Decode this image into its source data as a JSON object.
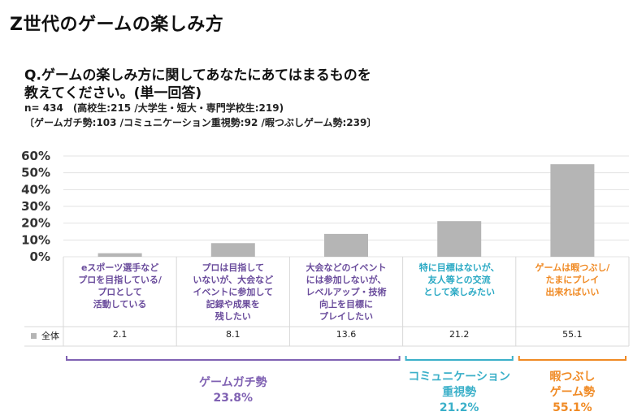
{
  "header": {
    "title": "Z世代のゲームの楽しみ方",
    "question_line1": "Q.ゲームの楽しみ方に関してあなたにあてはまるものを",
    "question_line2": "教えてください。(単一回答)",
    "sample_line1": "n= 434　(高校生:215 /大学生・短大・専門学校生:219)",
    "sample_line2": "〔ゲームガチ勢:103 /コミュニケーション重視勢:92 /暇つぶしゲーム勢:239〕"
  },
  "chart_data": {
    "type": "bar",
    "ylim": [
      0,
      60
    ],
    "yticks": [
      "0%",
      "10%",
      "20%",
      "30%",
      "40%",
      "50%",
      "60%"
    ],
    "categories": [
      "eスポーツ選手など\nプロを目指している/\nプロとして\n活動している",
      "プロは目指して\nいないが、大会など\nイベントに参加して\n記録や成果を\n残したい",
      "大会などのイベント\nには参加しないが、\nレベルアップ・技術\n向上を目標に\nプレイしたい",
      "特に目標はないが、\n友人等との交流\nとして楽しみたい",
      "ゲームは暇つぶし/\nたまにプレイ\n出来ればいい"
    ],
    "category_colors": [
      "#6a4c9c",
      "#6a4c9c",
      "#6a4c9c",
      "#2aa9c4",
      "#f08a24"
    ],
    "series": [
      {
        "name": "全体",
        "values": [
          2.1,
          8.1,
          13.6,
          21.2,
          55.1
        ],
        "labels": [
          "2.1",
          "8.1",
          "13.6",
          "21.2",
          "55.1"
        ]
      }
    ],
    "groups": [
      {
        "name": "ゲームガチ勢",
        "value": "23.8%",
        "color": "#8062b3",
        "span": [
          0,
          2
        ]
      },
      {
        "name": "コミュニケーション\n重視勢",
        "value": "21.2%",
        "color": "#3bb0c9",
        "span": [
          3,
          3
        ]
      },
      {
        "name": "暇つぶし\nゲーム勢",
        "value": "55.1%",
        "color": "#f08a24",
        "span": [
          4,
          4
        ]
      }
    ],
    "bar_color": "#b5b5b5",
    "grid": true,
    "title": "",
    "xlabel": "",
    "ylabel": ""
  }
}
